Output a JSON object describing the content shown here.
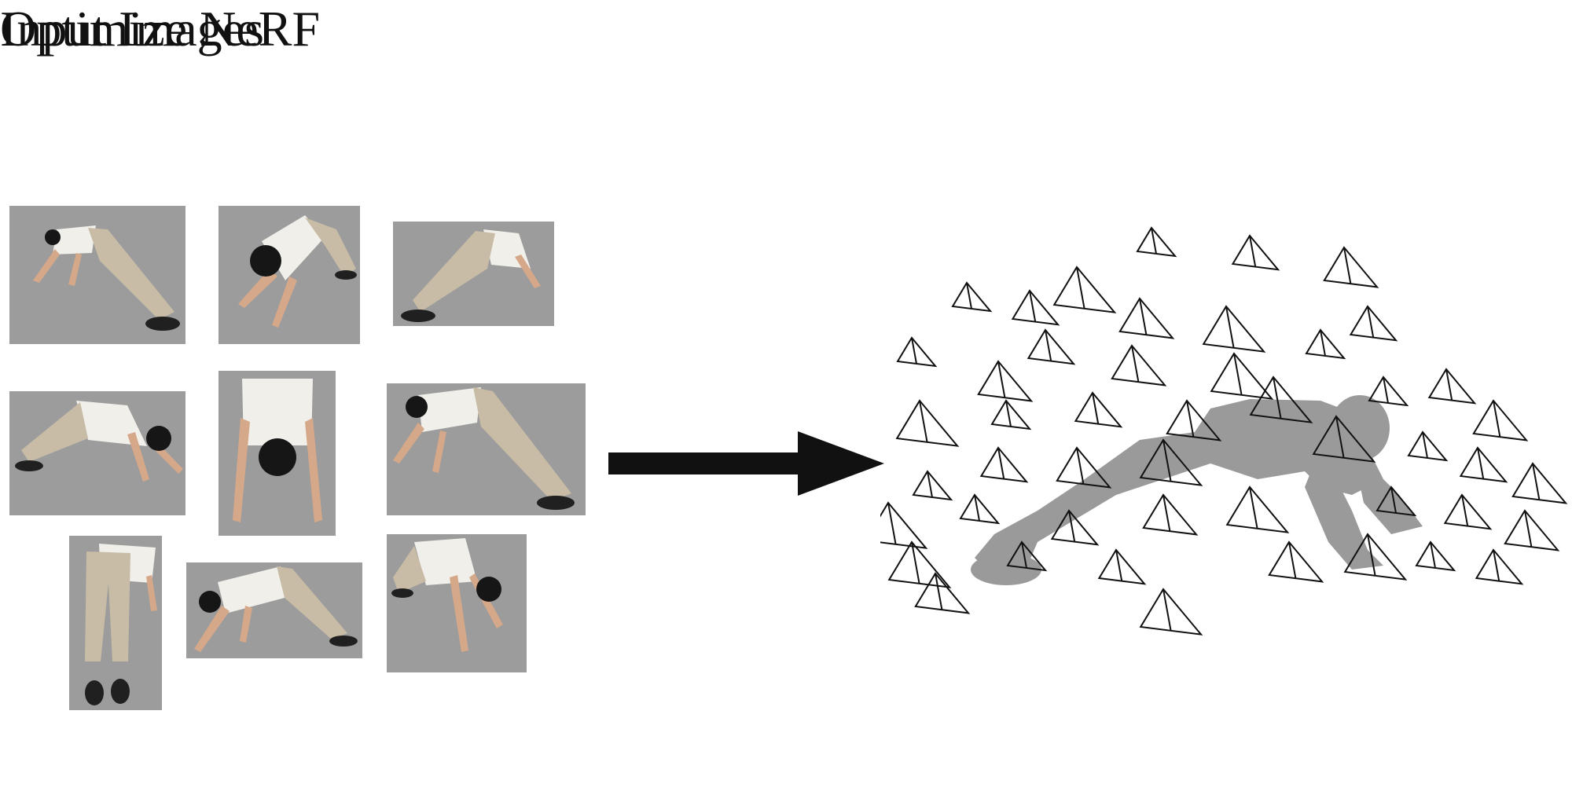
{
  "figure": {
    "left_title": "Input Images",
    "right_title": "Optimize NeRF"
  },
  "colors": {
    "photo_background": "#9c9c9c",
    "shirt": "#f1efea",
    "pants": "#c8bca6",
    "skin": "#d6a88a",
    "hair": "#161616",
    "shoes": "#202020",
    "arrow": "#111111",
    "mesh": "#9a9a9a",
    "camera_frustum_stroke": "#111111"
  }
}
